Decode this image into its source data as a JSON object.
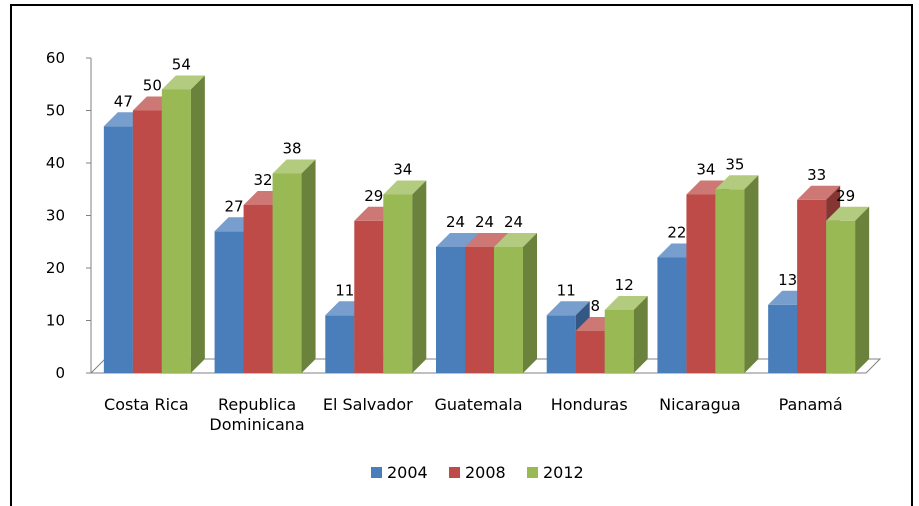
{
  "chart_data": {
    "type": "bar",
    "title": "",
    "xlabel": "",
    "ylabel": "",
    "ylim": [
      0,
      60
    ],
    "yticks": [
      0,
      10,
      20,
      30,
      40,
      50,
      60
    ],
    "grid": false,
    "legend_position": "bottom",
    "categories": [
      "Costa Rica",
      "Republica Dominicana",
      "El Salvador",
      "Guatemala",
      "Honduras",
      "Nicaragua",
      "Panamá"
    ],
    "category_lines": [
      [
        "Costa Rica"
      ],
      [
        "Republica",
        "Dominicana"
      ],
      [
        "El Salvador"
      ],
      [
        "Guatemala"
      ],
      [
        "Honduras"
      ],
      [
        "Nicaragua"
      ],
      [
        "Panamá"
      ]
    ],
    "series": [
      {
        "name": "2004",
        "color": "#4a7ebb",
        "values": [
          47,
          27,
          11,
          24,
          11,
          22,
          13
        ]
      },
      {
        "name": "2008",
        "color": "#be4b48",
        "values": [
          50,
          32,
          29,
          24,
          8,
          34,
          33
        ]
      },
      {
        "name": "2012",
        "color": "#98b954",
        "values": [
          54,
          38,
          34,
          24,
          12,
          35,
          29
        ]
      }
    ]
  }
}
